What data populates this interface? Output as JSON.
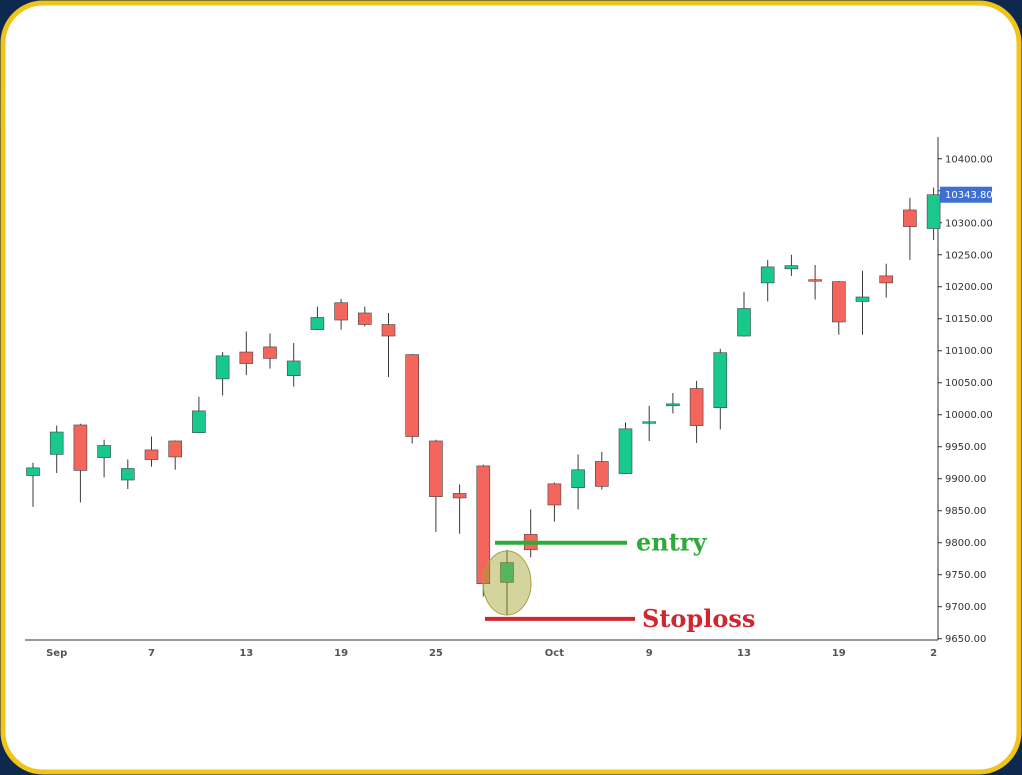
{
  "chart_data": {
    "type": "candlestick",
    "categories": [
      null,
      "Sep",
      null,
      null,
      null,
      "7",
      null,
      null,
      null,
      "13",
      null,
      null,
      null,
      "19",
      null,
      null,
      null,
      "25",
      null,
      null,
      null,
      null,
      "Oct",
      null,
      null,
      null,
      "9",
      null,
      null,
      null,
      "13",
      null,
      null,
      null,
      "19",
      null,
      null,
      null,
      "2"
    ],
    "open": [
      9905,
      9938,
      9984,
      9933,
      9898,
      9945,
      9959,
      9972,
      10056,
      10098,
      10106,
      10061,
      10133,
      10175,
      10159,
      10141,
      10094,
      9959,
      9877,
      9920,
      9738,
      9813,
      9892,
      9886,
      9927,
      9908,
      9987,
      10014,
      10041,
      10011,
      10123,
      10206,
      10228,
      10211,
      10208,
      10177,
      10217,
      10320,
      10291
    ],
    "high": [
      9925,
      9983,
      9986,
      9961,
      9930,
      9966,
      9960,
      10028,
      10098,
      10130,
      10127,
      10112,
      10169,
      10181,
      10169,
      10159,
      10095,
      9961,
      9891,
      9922,
      9789,
      9852,
      9894,
      9938,
      9942,
      9988,
      10014,
      10034,
      10053,
      10103,
      10192,
      10242,
      10250,
      10234,
      10209,
      10225,
      10236,
      10339,
      10355
    ],
    "low": [
      9856,
      9909,
      9863,
      9902,
      9884,
      9919,
      9914,
      9971,
      10030,
      10062,
      10072,
      10044,
      10132,
      10133,
      10138,
      10059,
      9955,
      9817,
      9814,
      9716,
      9688,
      9777,
      9833,
      9852,
      9883,
      9907,
      9959,
      10002,
      9956,
      9977,
      10122,
      10177,
      10217,
      10180,
      10125,
      10125,
      10183,
      10242,
      10273
    ],
    "close": [
      9917,
      9973,
      9913,
      9952,
      9916,
      9930,
      9934,
      10006,
      10092,
      10080,
      10088,
      10084,
      10152,
      10148,
      10141,
      10123,
      9966,
      9872,
      9870,
      9736,
      9769,
      9789,
      9859,
      9914,
      9888,
      9978,
      9989,
      10017,
      9983,
      10097,
      10166,
      10231,
      10233,
      10210,
      10145,
      10184,
      10206,
      10294,
      10343.8
    ],
    "up_color": "#19c98b",
    "down_color": "#f4665c",
    "ylim": [
      9648,
      10434
    ],
    "yticks": [
      {
        "value": 9650,
        "label": "9650.00"
      },
      {
        "value": 9700,
        "label": "9700.00"
      },
      {
        "value": 9750,
        "label": "9750.00"
      },
      {
        "value": 9800,
        "label": "9800.00"
      },
      {
        "value": 9850,
        "label": "9850.00"
      },
      {
        "value": 9900,
        "label": "9900.00"
      },
      {
        "value": 9950,
        "label": "9950.00"
      },
      {
        "value": 10000,
        "label": "10000.00"
      },
      {
        "value": 10050,
        "label": "10050.00"
      },
      {
        "value": 10100,
        "label": "10100.00"
      },
      {
        "value": 10150,
        "label": "10150.00"
      },
      {
        "value": 10200,
        "label": "10200.00"
      },
      {
        "value": 10250,
        "label": "10250.00"
      },
      {
        "value": 10300,
        "label": "10300.00"
      },
      {
        "value": 10350,
        "label": "10350.00"
      },
      {
        "value": 10400,
        "label": "10400.00"
      }
    ],
    "last_price": {
      "value": 10343.8,
      "label": "10343.80"
    },
    "annotations": [
      {
        "text": "entry",
        "value": 9800,
        "color": "#2eaa3a"
      },
      {
        "text": "Stoploss",
        "value": 9681,
        "color": "#d0262f"
      }
    ]
  }
}
